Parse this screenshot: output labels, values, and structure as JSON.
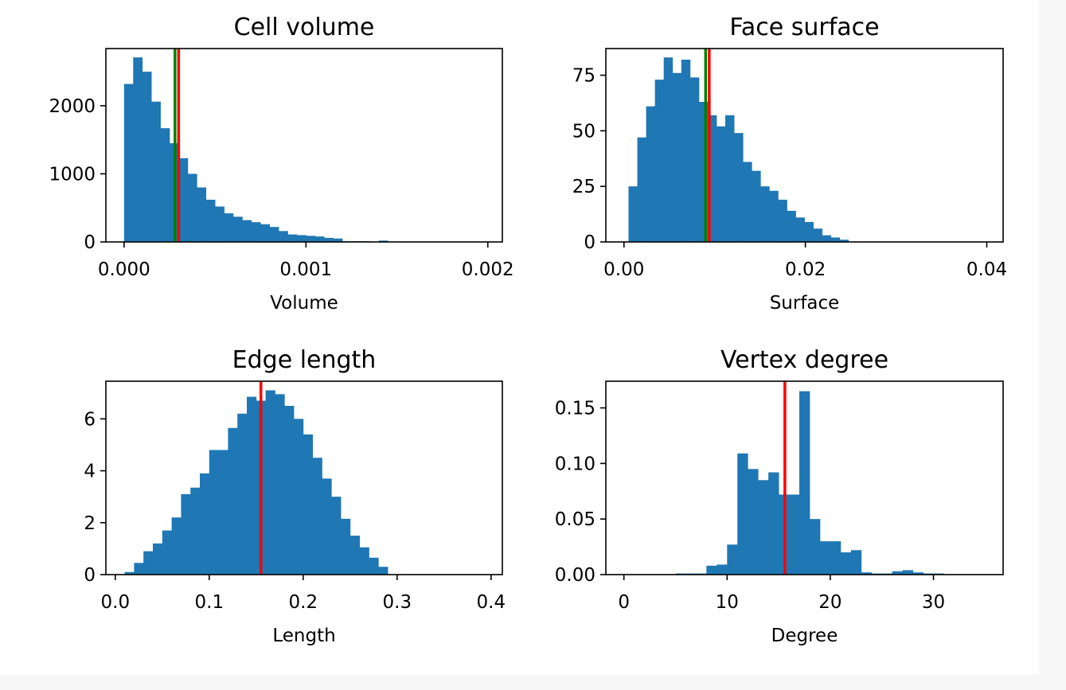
{
  "chart_data": [
    {
      "type": "bar",
      "title": "Cell volume",
      "xlabel": "Volume",
      "xlim": [
        -0.0001,
        0.00208
      ],
      "ylim": [
        0,
        2840
      ],
      "xticks": [
        0.0,
        0.001,
        0.002
      ],
      "xtick_labels": [
        "0.000",
        "0.001",
        "0.002"
      ],
      "yticks": [
        0,
        1000,
        2000
      ],
      "ytick_labels": [
        "0",
        "1000",
        "2000"
      ],
      "bin_start": 0.0,
      "bin_width": 5e-05,
      "values": [
        2320,
        2710,
        2500,
        2060,
        1670,
        1450,
        1230,
        1000,
        800,
        620,
        520,
        420,
        370,
        320,
        290,
        260,
        220,
        160,
        110,
        100,
        90,
        80,
        60,
        50,
        10,
        10,
        10,
        0,
        20,
        0,
        0,
        0,
        0,
        0,
        0,
        0,
        0,
        0,
        0,
        0
      ],
      "vlines": [
        {
          "x": 0.00028,
          "color": "#008000"
        },
        {
          "x": 0.0003,
          "color": "#ff0000"
        }
      ],
      "bar_color": "#1f77b4"
    },
    {
      "type": "bar",
      "title": "Face surface",
      "xlabel": "Surface",
      "xlim": [
        -0.002,
        0.0418
      ],
      "ylim": [
        0,
        87
      ],
      "xticks": [
        0.0,
        0.02,
        0.04
      ],
      "xtick_labels": [
        "0.00",
        "0.02",
        "0.04"
      ],
      "yticks": [
        0,
        25,
        50,
        75
      ],
      "ytick_labels": [
        "0",
        "25",
        "50",
        "75"
      ],
      "bin_start": 0.0005,
      "bin_width": 0.00097,
      "values": [
        25,
        47,
        61,
        73,
        83,
        76,
        82,
        74,
        63,
        57,
        52,
        57,
        49,
        36,
        32,
        25,
        23,
        19,
        14,
        11,
        9,
        6,
        3,
        2,
        1,
        0,
        0,
        0,
        0,
        0,
        0,
        0,
        0,
        0,
        0,
        0,
        0,
        0,
        0,
        0
      ],
      "vlines": [
        {
          "x": 0.009,
          "color": "#008000"
        },
        {
          "x": 0.0094,
          "color": "#ff0000"
        }
      ],
      "bar_color": "#1f77b4"
    },
    {
      "type": "bar",
      "title": "Edge length",
      "xlabel": "Length",
      "xlim": [
        -0.01,
        0.412
      ],
      "ylim": [
        0,
        7.45
      ],
      "xticks": [
        0.0,
        0.1,
        0.2,
        0.3,
        0.4
      ],
      "xtick_labels": [
        "0.0",
        "0.1",
        "0.2",
        "0.3",
        "0.4"
      ],
      "yticks": [
        0,
        2,
        4,
        6
      ],
      "ytick_labels": [
        "0",
        "2",
        "4",
        "6"
      ],
      "bin_start": 0.0,
      "bin_width": 0.01,
      "values": [
        0.0,
        0.1,
        0.45,
        0.9,
        1.2,
        1.7,
        2.2,
        3.1,
        3.35,
        3.9,
        4.8,
        4.8,
        5.65,
        6.2,
        6.85,
        6.7,
        7.1,
        6.95,
        6.5,
        6.0,
        5.4,
        4.5,
        3.7,
        3.0,
        2.15,
        1.5,
        1.05,
        0.65,
        0.3,
        0.0,
        0.0,
        0.0,
        0.0,
        0.0,
        0.0,
        0.0,
        0.0,
        0.0,
        0.0,
        0.0
      ],
      "vlines": [
        {
          "x": 0.155,
          "color": "#ff0000"
        }
      ],
      "bar_color": "#1f77b4"
    },
    {
      "type": "bar",
      "title": "Vertex degree",
      "xlabel": "Degree",
      "xlim": [
        -1.75,
        36.75
      ],
      "ylim": [
        0,
        0.174
      ],
      "xticks": [
        0,
        10,
        20,
        30
      ],
      "xtick_labels": [
        "0",
        "10",
        "20",
        "30"
      ],
      "yticks": [
        0.0,
        0.05,
        0.1,
        0.15
      ],
      "ytick_labels": [
        "0.00",
        "0.05",
        "0.10",
        "0.15"
      ],
      "bin_start": 0.0,
      "bin_width": 1.0,
      "values": [
        0,
        0,
        0,
        0,
        0,
        0.001,
        0.001,
        0.001,
        0.008,
        0.009,
        0.027,
        0.109,
        0.095,
        0.085,
        0.092,
        0.072,
        0.072,
        0.165,
        0.05,
        0.03,
        0.03,
        0.02,
        0.022,
        0.002,
        0.001,
        0.001,
        0.003,
        0.004,
        0.002,
        0.001,
        0.001,
        0,
        0,
        0,
        0
      ],
      "vlines": [
        {
          "x": 15.6,
          "color": "#ff0000"
        }
      ],
      "bar_color": "#1f77b4"
    }
  ]
}
